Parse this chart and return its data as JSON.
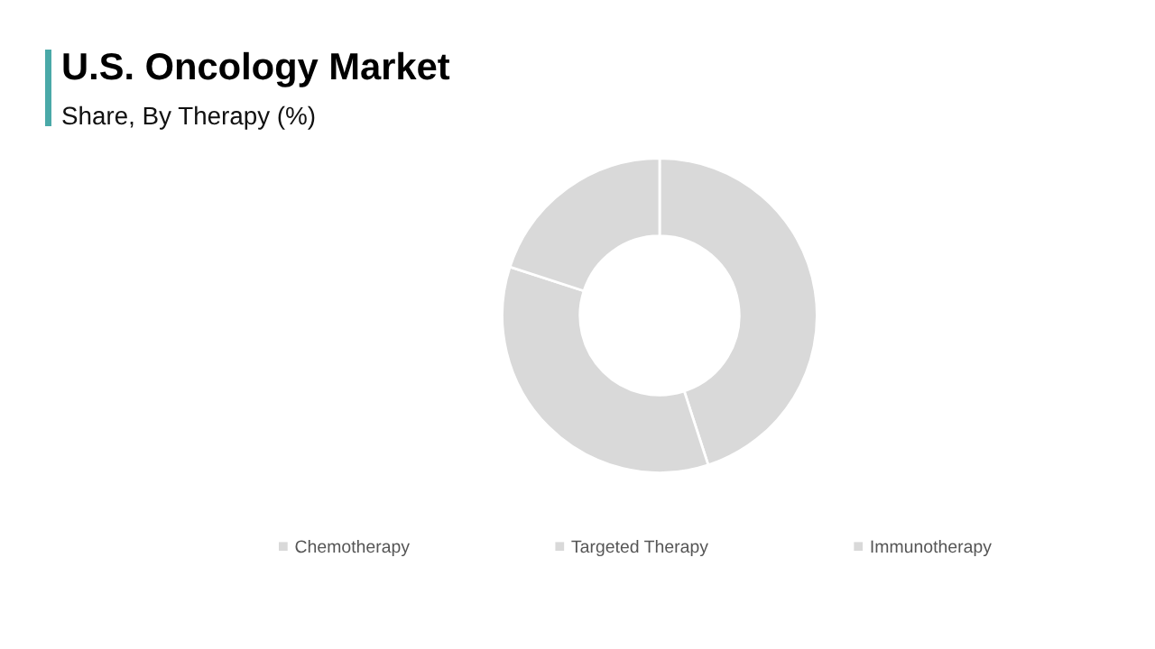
{
  "chart_data": {
    "type": "donut",
    "title": "U.S. Oncology Market",
    "subtitle": "Share, By Therapy (%)",
    "categories": [
      "Chemotherapy",
      "Targeted Therapy",
      "Immunotherapy"
    ],
    "values": [
      45,
      35,
      20
    ],
    "colors": [
      "#d9d9d9",
      "#d9d9d9",
      "#d9d9d9"
    ],
    "legend": "bottom"
  }
}
